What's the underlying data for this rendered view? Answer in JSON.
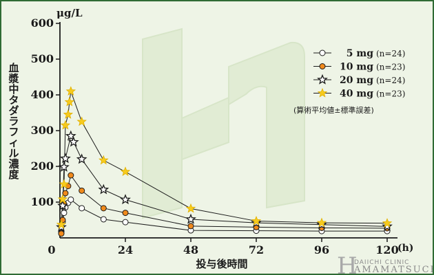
{
  "chart_data": {
    "type": "line",
    "unit_label": "μg/L",
    "xlabel": "投与後時間",
    "x_unit": "(h)",
    "ylabel": "血漿中タダラフィル濃度",
    "xlim": [
      0,
      120
    ],
    "ylim": [
      0,
      600
    ],
    "xticks": [
      0,
      24,
      48,
      72,
      96,
      120
    ],
    "yticks": [
      100,
      200,
      300,
      400,
      500,
      600
    ],
    "xtick_labels": [
      "0",
      "24",
      "48",
      "72",
      "96",
      "120"
    ],
    "ytick_labels": [
      "100",
      "200",
      "300",
      "400",
      "500",
      "600"
    ],
    "grid": false,
    "legend_position": "top-right",
    "footnote": "(算術平均値±標準誤差)",
    "series": [
      {
        "name": "5 mg",
        "n": "(n=24)",
        "marker": "circle-open",
        "color": "#ffffff",
        "points": [
          [
            0.5,
            14
          ],
          [
            1,
            45
          ],
          [
            1.5,
            70
          ],
          [
            2,
            85
          ],
          [
            3,
            98
          ],
          [
            4,
            107
          ],
          [
            8,
            83
          ],
          [
            16,
            52
          ],
          [
            24,
            44
          ],
          [
            48,
            21
          ],
          [
            72,
            20
          ],
          [
            96,
            19
          ],
          [
            120,
            19
          ]
        ]
      },
      {
        "name": "10 mg",
        "n": "(n=23)",
        "marker": "circle-filled",
        "color": "#f08a1c",
        "points": [
          [
            0.5,
            12
          ],
          [
            1,
            50
          ],
          [
            1.5,
            95
          ],
          [
            2,
            125
          ],
          [
            3,
            145
          ],
          [
            4,
            175
          ],
          [
            8,
            132
          ],
          [
            16,
            83
          ],
          [
            24,
            70
          ],
          [
            48,
            33
          ],
          [
            72,
            30
          ],
          [
            96,
            28
          ],
          [
            120,
            27
          ]
        ]
      },
      {
        "name": "20 mg",
        "n": "(n=24)",
        "marker": "star-open",
        "color": "#ffffff",
        "points": [
          [
            0.5,
            30
          ],
          [
            1,
            90
          ],
          [
            1.5,
            198
          ],
          [
            2,
            222
          ],
          [
            4,
            285
          ],
          [
            5,
            268
          ],
          [
            8,
            220
          ],
          [
            16,
            135
          ],
          [
            24,
            107
          ],
          [
            48,
            52
          ],
          [
            72,
            42
          ],
          [
            96,
            37
          ],
          [
            120,
            32
          ]
        ]
      },
      {
        "name": "40 mg",
        "n": "(n=23)",
        "marker": "star-filled",
        "color": "#f7cb1e",
        "points": [
          [
            0.5,
            37
          ],
          [
            1,
            108
          ],
          [
            1.5,
            150
          ],
          [
            2,
            315
          ],
          [
            3,
            345
          ],
          [
            3.5,
            380
          ],
          [
            4,
            410
          ],
          [
            8,
            325
          ],
          [
            16,
            217
          ],
          [
            24,
            185
          ],
          [
            48,
            82
          ],
          [
            72,
            47
          ],
          [
            96,
            42
          ],
          [
            120,
            41
          ]
        ]
      }
    ]
  },
  "watermark": {
    "line1": "DAIICHI CLINIC",
    "initial": "H",
    "line2": "AMAMATSUCHO"
  }
}
